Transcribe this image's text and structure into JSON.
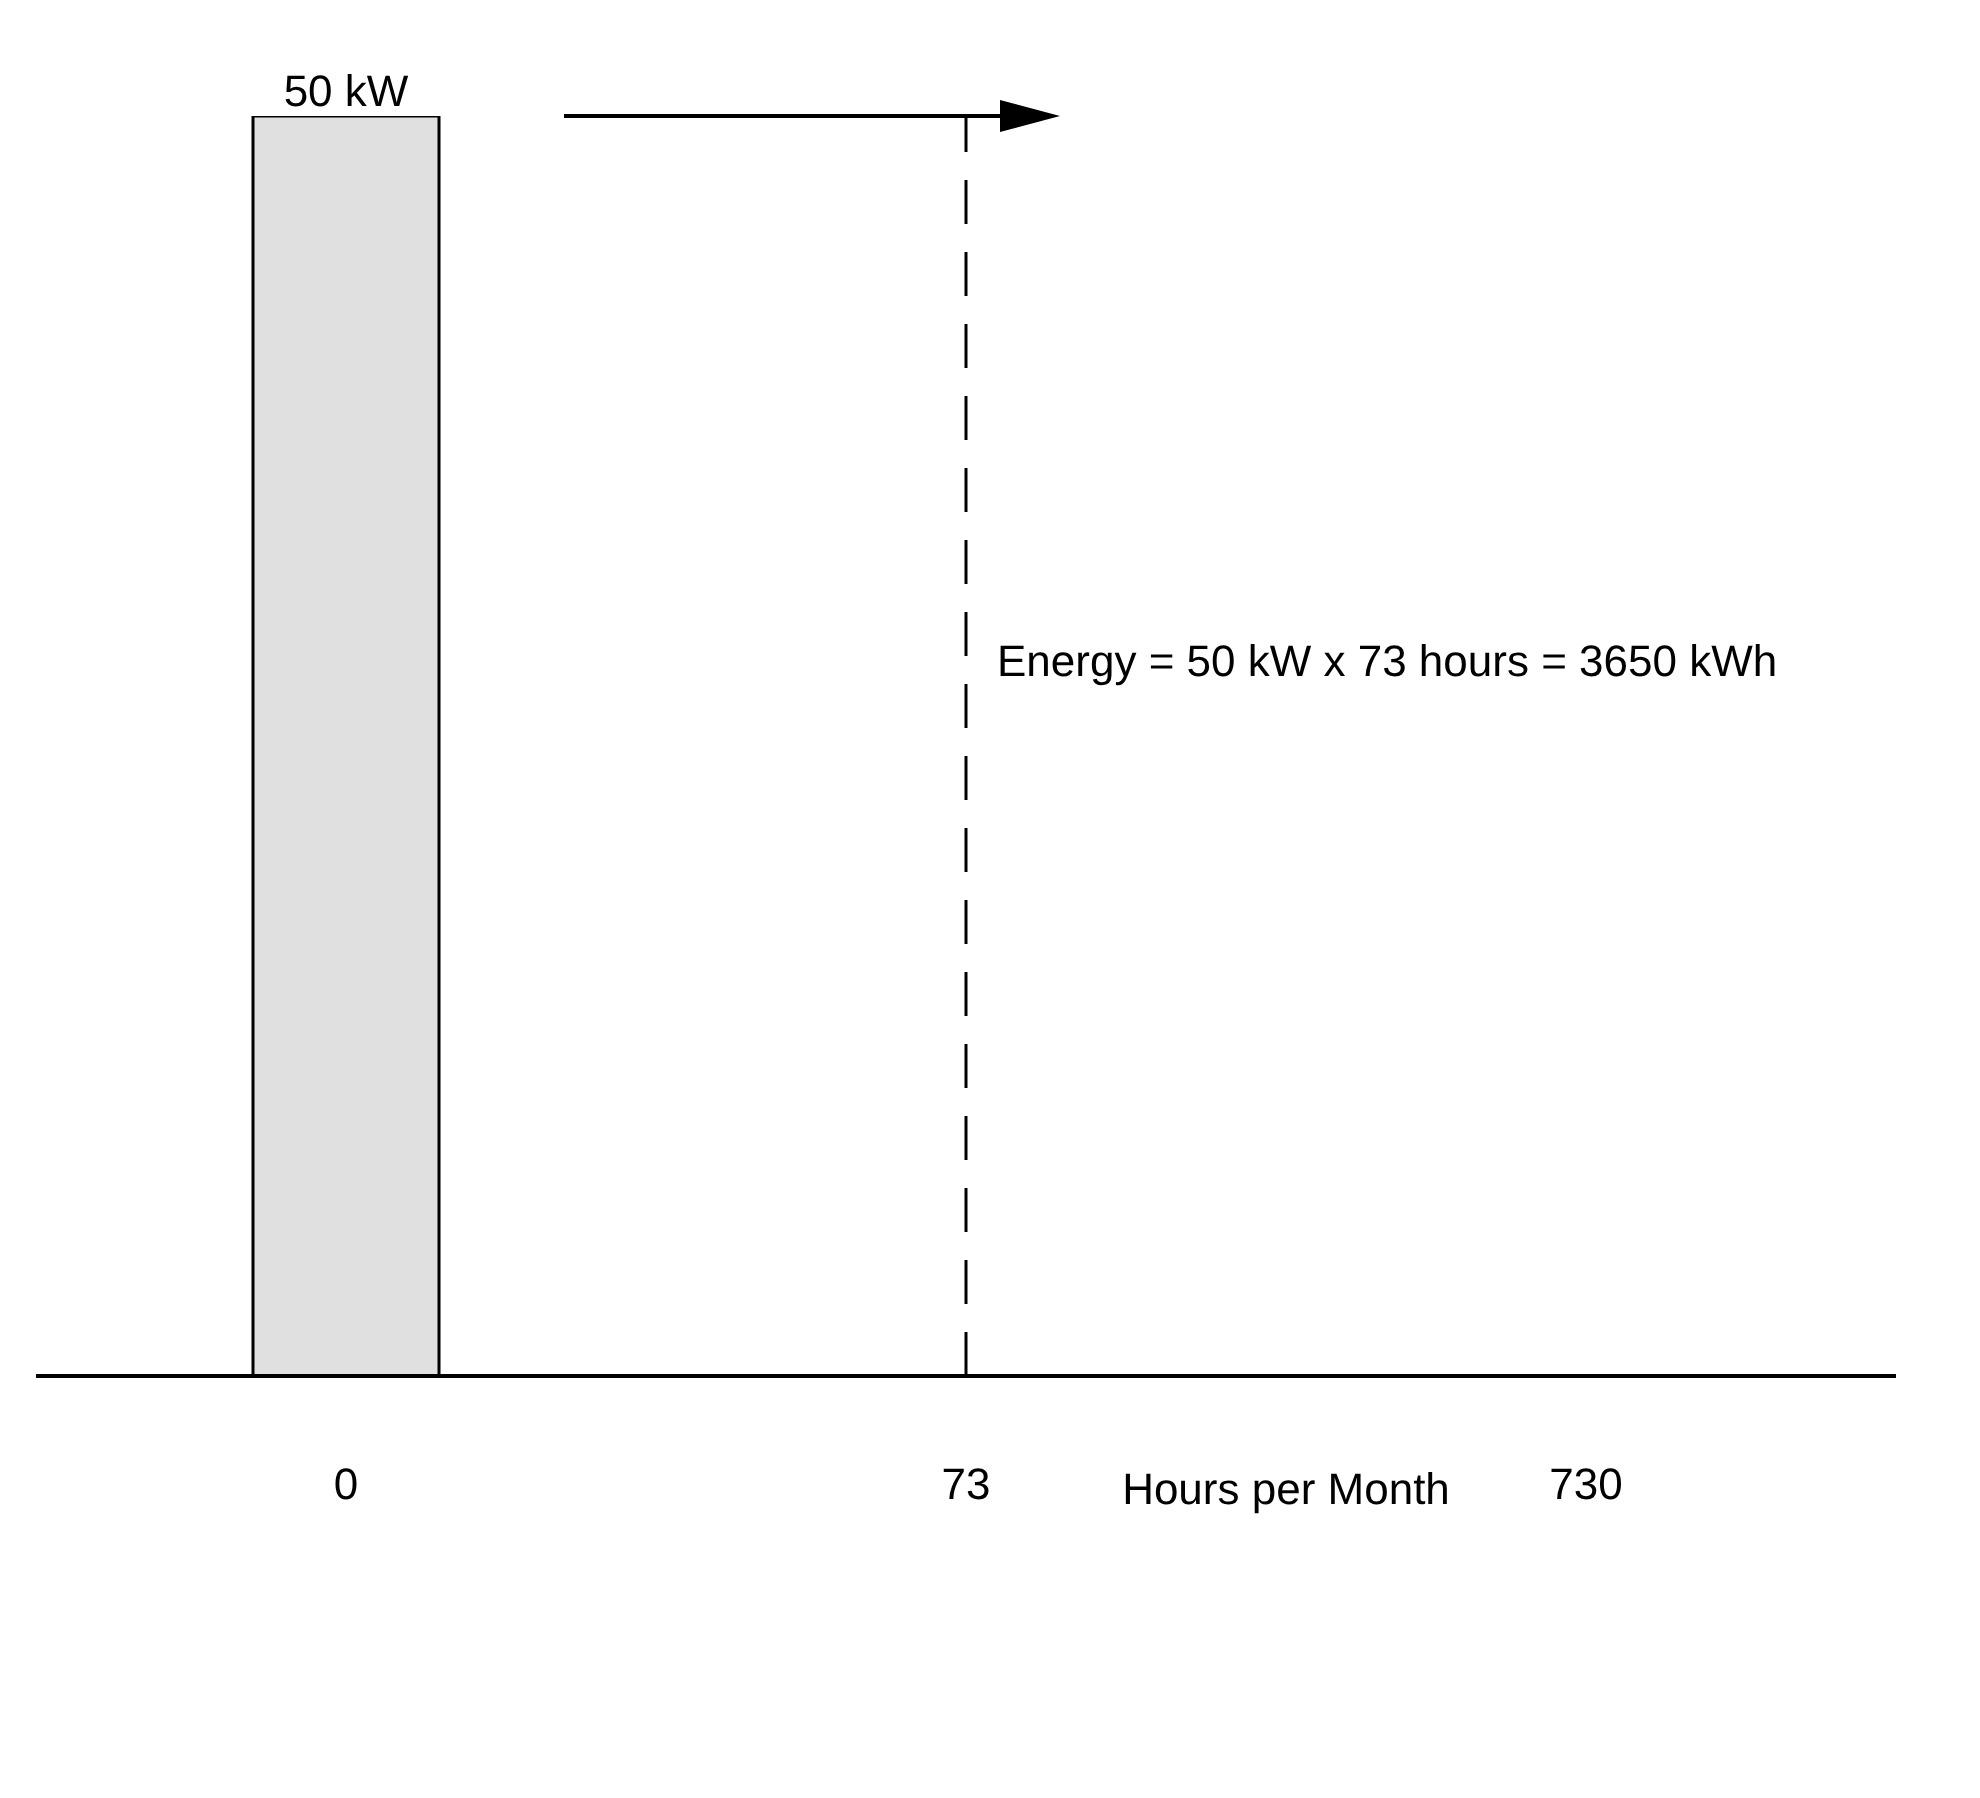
{
  "chart_data": {
    "type": "bar",
    "xlabel": "Hours per Month",
    "categories": [
      "0",
      "73",
      "730"
    ],
    "values": [
      50,
      null,
      null
    ],
    "value_labels": [
      "50 kW",
      null,
      null
    ],
    "color": "#e0e0e0",
    "ylim": [
      0,
      50
    ],
    "ref_lines": [
      {
        "axis": "x",
        "value": "73",
        "line_style": "dashed",
        "color": "#000000"
      }
    ],
    "annotations": [
      "Energy = 50 kW x 73 hours = 3650 kWh"
    ]
  }
}
